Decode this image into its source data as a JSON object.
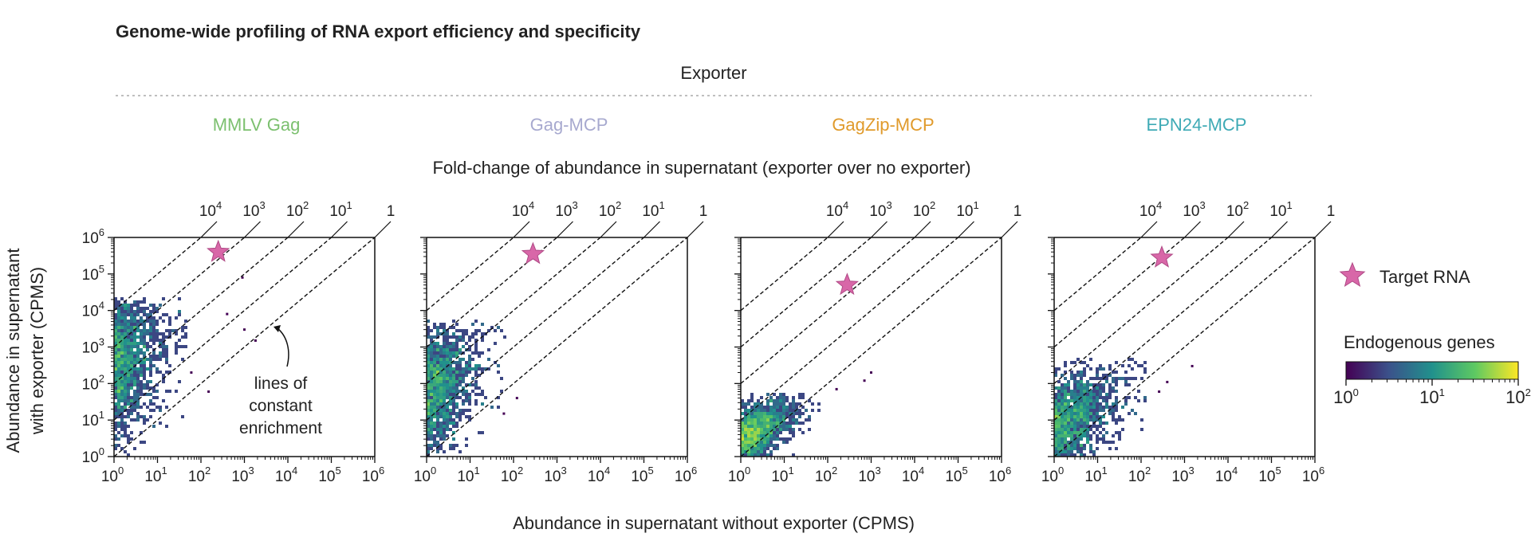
{
  "title": "Genome-wide profiling of RNA export efficiency and specificity",
  "exporter_header": "Exporter",
  "top_axis_title": "Fold-change of abundance in supernatant (exporter over no exporter)",
  "x_axis_title": "Abundance in supernatant without exporter (CPMS)",
  "y_axis_title_line1": "Abundance in supernatant",
  "y_axis_title_line2": "with exporter (CPMS)",
  "annotation": [
    "lines of",
    "constant",
    "enrichment"
  ],
  "legend": {
    "target_label": "Target RNA",
    "target_color": "#d867a8",
    "colorbar_title": "Endogenous genes",
    "colorbar_ticks": [
      {
        "base": "10",
        "exp": "0"
      },
      {
        "base": "10",
        "exp": "1"
      },
      {
        "base": "10",
        "exp": "2"
      }
    ],
    "colormap": [
      "#440154",
      "#3b528b",
      "#21918c",
      "#5ec962",
      "#fde725"
    ]
  },
  "chart_data": [
    {
      "type": "scatter",
      "panel": "MMLV Gag",
      "color": "#7cc06f",
      "x_scale": "log",
      "y_scale": "log",
      "xlim": [
        1,
        1000000
      ],
      "ylim": [
        1,
        1000000
      ],
      "top_axis_ticks": [
        10000,
        1000,
        100,
        10,
        1
      ],
      "target_rna": {
        "x": 250,
        "y": 400000
      },
      "density_cloud": {
        "x_range": [
          1,
          50
        ],
        "y_range": [
          1,
          20000
        ],
        "center": {
          "x": 2,
          "y": 300
        }
      },
      "outliers": [
        [
          400,
          8000
        ],
        [
          900,
          80000
        ],
        [
          60,
          200
        ],
        [
          150,
          60
        ],
        [
          1000,
          3000
        ],
        [
          1800,
          1500
        ]
      ]
    },
    {
      "type": "scatter",
      "panel": "Gag-MCP",
      "color": "#a7a9cf",
      "x_scale": "log",
      "y_scale": "log",
      "xlim": [
        1,
        1000000
      ],
      "ylim": [
        1,
        1000000
      ],
      "top_axis_ticks": [
        10000,
        1000,
        100,
        10,
        1
      ],
      "target_rna": {
        "x": 280,
        "y": 350000
      },
      "density_cloud": {
        "x_range": [
          1,
          60
        ],
        "y_range": [
          1,
          5000
        ],
        "center": {
          "x": 2,
          "y": 60
        }
      },
      "outliers": [
        [
          120,
          40
        ],
        [
          60,
          15
        ]
      ]
    },
    {
      "type": "scatter",
      "panel": "GagZip-MCP",
      "color": "#e09a2b",
      "x_scale": "log",
      "y_scale": "log",
      "xlim": [
        1,
        1000000
      ],
      "ylim": [
        1,
        1000000
      ],
      "top_axis_ticks": [
        10000,
        1000,
        100,
        10,
        1
      ],
      "target_rna": {
        "x": 280,
        "y": 50000
      },
      "density_cloud": {
        "x_range": [
          1,
          70
        ],
        "y_range": [
          1,
          50
        ],
        "center": {
          "x": 2,
          "y": 3
        }
      },
      "outliers": [
        [
          1000,
          200
        ],
        [
          700,
          120
        ],
        [
          160,
          70
        ]
      ]
    },
    {
      "type": "scatter",
      "panel": "EPN24-MCP",
      "color": "#3eaab5",
      "x_scale": "log",
      "y_scale": "log",
      "xlim": [
        1,
        1000000
      ],
      "ylim": [
        1,
        1000000
      ],
      "top_axis_ticks": [
        10000,
        1000,
        100,
        10,
        1
      ],
      "target_rna": {
        "x": 300,
        "y": 280000
      },
      "density_cloud": {
        "x_range": [
          1,
          150
        ],
        "y_range": [
          1,
          500
        ],
        "center": {
          "x": 3,
          "y": 6
        }
      },
      "outliers": [
        [
          1500,
          300
        ],
        [
          400,
          110
        ],
        [
          260,
          60
        ]
      ]
    }
  ]
}
